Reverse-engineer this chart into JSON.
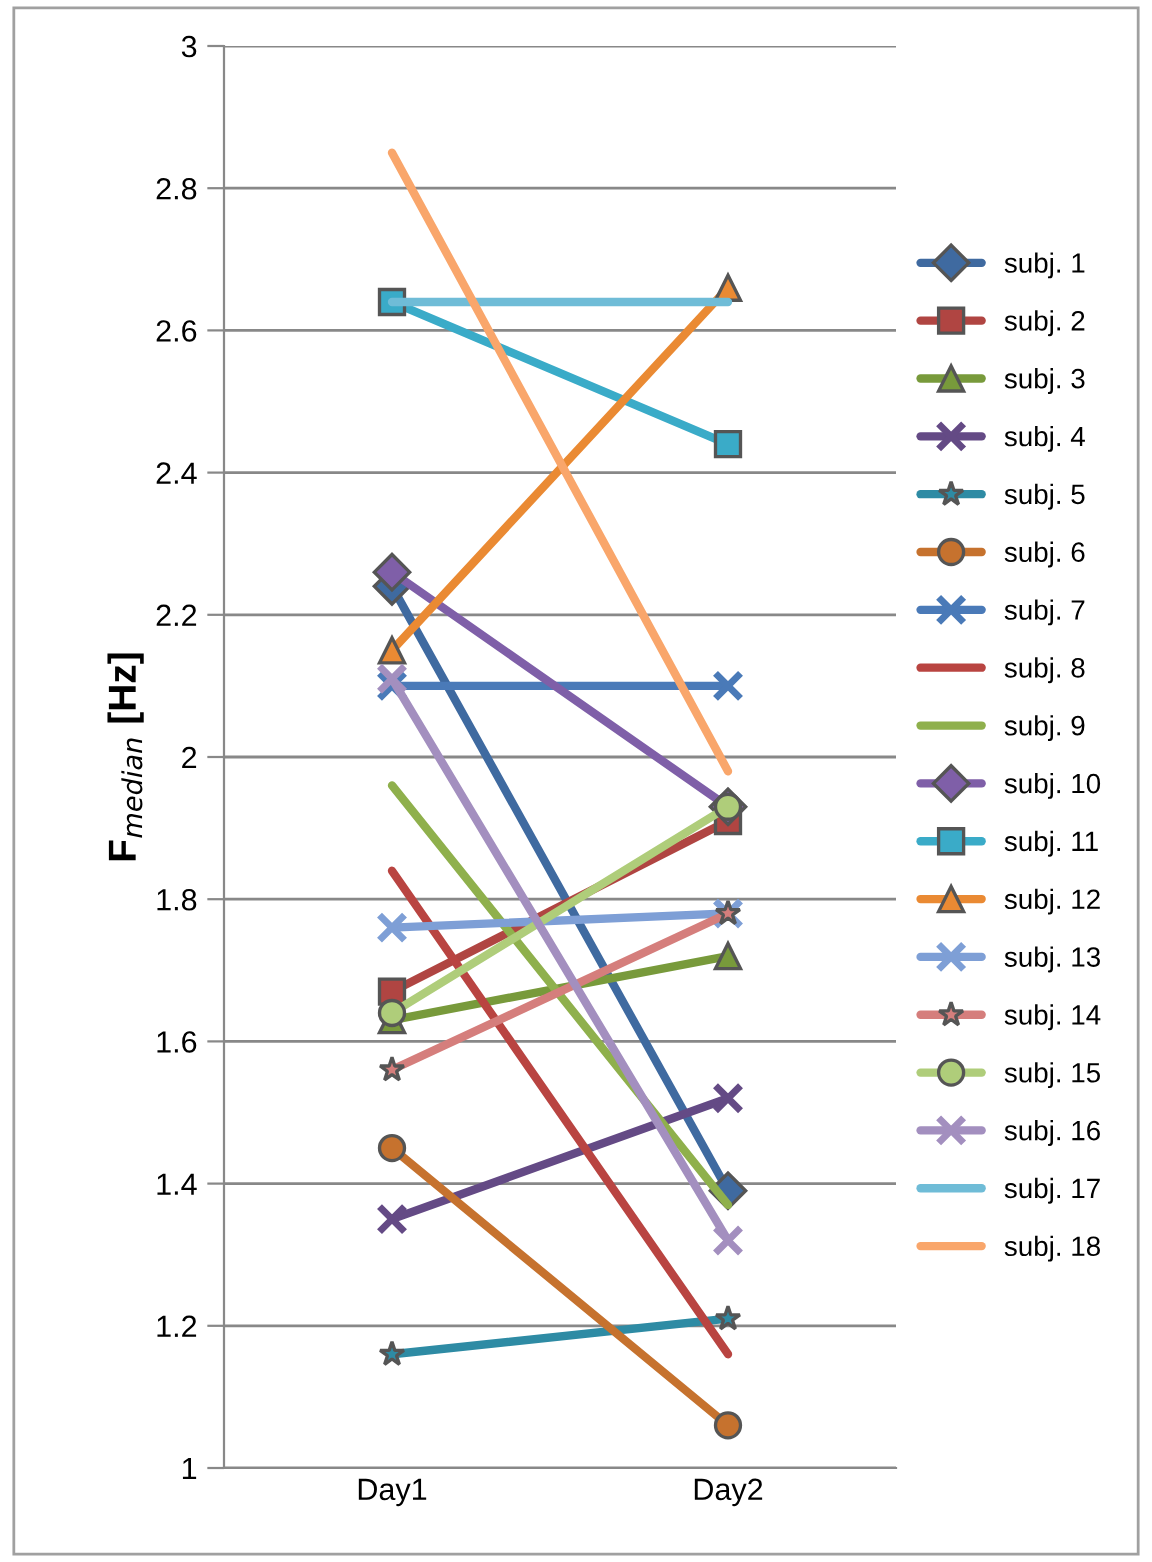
{
  "chart_data": {
    "type": "line",
    "ylabel": "F$_{median}$ [Hz]",
    "categories": [
      "Day1",
      "Day2"
    ],
    "ylim": [
      1,
      3
    ],
    "yticks": [
      1,
      1.2,
      1.4,
      1.6,
      1.8,
      2,
      2.2,
      2.4,
      2.6,
      2.8,
      3
    ],
    "grid": "y",
    "legend": "right",
    "line_style": "solid",
    "series": [
      {
        "name": "subj. 1",
        "color": "#3f6aa0",
        "marker": "diamond",
        "values": [
          2.24,
          1.39
        ]
      },
      {
        "name": "subj. 2",
        "color": "#b04542",
        "marker": "square",
        "values": [
          1.67,
          1.91
        ]
      },
      {
        "name": "subj. 3",
        "color": "#789a3b",
        "marker": "triangle",
        "values": [
          1.63,
          1.72
        ]
      },
      {
        "name": "subj. 4",
        "color": "#644a85",
        "marker": "cross",
        "values": [
          1.35,
          1.52
        ]
      },
      {
        "name": "subj. 5",
        "color": "#2e8ba4",
        "marker": "star",
        "values": [
          1.16,
          1.21
        ]
      },
      {
        "name": "subj. 6",
        "color": "#c6722e",
        "marker": "circle",
        "values": [
          1.45,
          1.06
        ]
      },
      {
        "name": "subj. 7",
        "color": "#4a7ab8",
        "marker": "cross",
        "values": [
          2.1,
          2.1
        ]
      },
      {
        "name": "subj. 8",
        "color": "#b94441",
        "marker": "none",
        "values": [
          1.84,
          1.16
        ]
      },
      {
        "name": "subj. 9",
        "color": "#8fb04c",
        "marker": "none",
        "values": [
          1.96,
          1.37
        ]
      },
      {
        "name": "subj. 10",
        "color": "#7f5fa8",
        "marker": "diamond",
        "values": [
          2.26,
          1.93
        ]
      },
      {
        "name": "subj. 11",
        "color": "#3aabc8",
        "marker": "square",
        "values": [
          2.64,
          2.44
        ]
      },
      {
        "name": "subj. 12",
        "color": "#ea8a33",
        "marker": "triangle",
        "values": [
          2.15,
          2.66
        ]
      },
      {
        "name": "subj. 13",
        "color": "#7e9fd6",
        "marker": "cross",
        "values": [
          1.76,
          1.78
        ]
      },
      {
        "name": "subj. 14",
        "color": "#d57e7c",
        "marker": "star",
        "values": [
          1.56,
          1.78
        ]
      },
      {
        "name": "subj. 15",
        "color": "#afcd7a",
        "marker": "circle",
        "values": [
          1.64,
          1.93
        ]
      },
      {
        "name": "subj. 16",
        "color": "#a38fbf",
        "marker": "cross",
        "values": [
          2.11,
          1.32
        ]
      },
      {
        "name": "subj. 17",
        "color": "#6fbcd7",
        "marker": "none",
        "values": [
          2.64,
          2.64
        ]
      },
      {
        "name": "subj. 18",
        "color": "#f9a66b",
        "marker": "none",
        "values": [
          2.85,
          1.98
        ]
      }
    ]
  }
}
